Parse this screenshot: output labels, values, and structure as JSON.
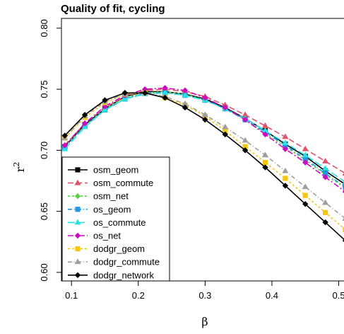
{
  "chart_data": {
    "type": "line",
    "title": "Quality of fit, cycling",
    "xlabel": "β",
    "ylabel": "r",
    "ylabel_sup": "2",
    "xlim": [
      0.085,
      0.51
    ],
    "ylim": [
      0.593,
      0.808
    ],
    "xticks": [
      0.1,
      0.2,
      0.3,
      0.4,
      0.5
    ],
    "xtick_labels": [
      "0.1",
      "0.2",
      "0.3",
      "0.4",
      "0.5"
    ],
    "yticks": [
      0.6,
      0.65,
      0.7,
      0.75,
      0.8
    ],
    "ytick_labels": [
      "0.60",
      "0.65",
      "0.70",
      "0.75",
      "0.80"
    ],
    "grid": false,
    "legend_position": "bottom-left",
    "x": [
      0.09,
      0.12,
      0.15,
      0.18,
      0.21,
      0.24,
      0.27,
      0.3,
      0.33,
      0.36,
      0.39,
      0.42,
      0.45,
      0.48,
      0.51
    ],
    "series": [
      {
        "name": "osm_geom",
        "color": "#000000",
        "marker": "square",
        "dash": "",
        "values": [
          0.703,
          0.721,
          0.734,
          0.744,
          0.748,
          0.748,
          0.746,
          0.742,
          0.735,
          0.726,
          0.716,
          0.705,
          0.695,
          0.683,
          0.672
        ]
      },
      {
        "name": "osm_commute",
        "color": "#DF536B",
        "marker": "triangle",
        "dash": "8,4",
        "values": [
          0.704,
          0.722,
          0.735,
          0.744,
          0.749,
          0.75,
          0.748,
          0.744,
          0.737,
          0.729,
          0.72,
          0.711,
          0.701,
          0.691,
          0.681
        ]
      },
      {
        "name": "osm_net",
        "color": "#61D04F",
        "marker": "diamond",
        "dash": "3,3",
        "values": [
          0.703,
          0.72,
          0.734,
          0.743,
          0.747,
          0.748,
          0.746,
          0.741,
          0.734,
          0.725,
          0.714,
          0.703,
          0.692,
          0.68,
          0.669
        ]
      },
      {
        "name": "os_geom",
        "color": "#2297E6",
        "marker": "square",
        "dash": "6,3,1,3",
        "values": [
          0.702,
          0.72,
          0.733,
          0.742,
          0.747,
          0.747,
          0.745,
          0.741,
          0.734,
          0.725,
          0.715,
          0.704,
          0.693,
          0.681,
          0.67
        ]
      },
      {
        "name": "os_commute",
        "color": "#28E2E5",
        "marker": "triangle",
        "dash": "10,4",
        "values": [
          0.701,
          0.719,
          0.733,
          0.742,
          0.746,
          0.747,
          0.745,
          0.741,
          0.734,
          0.726,
          0.716,
          0.706,
          0.696,
          0.685,
          0.674
        ]
      },
      {
        "name": "os_net",
        "color": "#CD0BBC",
        "marker": "diamond",
        "dash": "8,3,2,3",
        "values": [
          0.704,
          0.722,
          0.736,
          0.745,
          0.75,
          0.751,
          0.749,
          0.743,
          0.735,
          0.725,
          0.713,
          0.701,
          0.69,
          0.678,
          0.666
        ]
      },
      {
        "name": "dodgr_geom",
        "color": "#F5C710",
        "marker": "square",
        "dash": "3,3",
        "values": [
          0.71,
          0.727,
          0.739,
          0.746,
          0.747,
          0.743,
          0.737,
          0.728,
          0.716,
          0.703,
          0.69,
          0.677,
          0.663,
          0.649,
          0.635
        ]
      },
      {
        "name": "dodgr_commute",
        "color": "#9E9E9E",
        "marker": "triangle",
        "dash": "6,3,1,3",
        "values": [
          0.71,
          0.728,
          0.74,
          0.746,
          0.747,
          0.744,
          0.738,
          0.729,
          0.719,
          0.708,
          0.696,
          0.683,
          0.67,
          0.657,
          0.644
        ]
      },
      {
        "name": "dodgr_network",
        "color": "#000000",
        "marker": "diamond",
        "dash": "",
        "values": [
          0.712,
          0.729,
          0.741,
          0.747,
          0.747,
          0.743,
          0.735,
          0.725,
          0.713,
          0.7,
          0.686,
          0.671,
          0.656,
          0.641,
          0.626
        ]
      }
    ]
  }
}
